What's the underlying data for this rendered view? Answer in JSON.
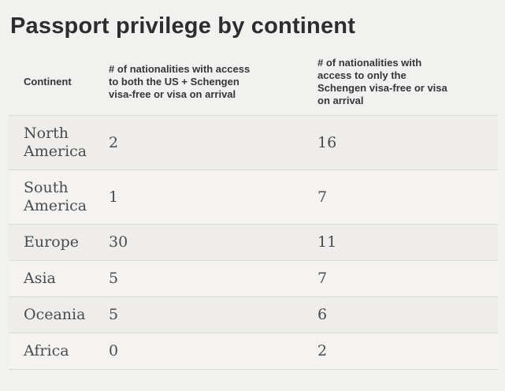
{
  "page": {
    "title": "Passport privilege by continent",
    "background_color": "#f1f1f0",
    "title_color": "#2d2d2d",
    "divider_color": "#d9d9d7",
    "row_stripe_dark": "#eeedeb",
    "row_stripe_light": "#f4f3f1"
  },
  "table": {
    "headers": {
      "continent": "Continent",
      "us_schengen": "# of nationalities with access\nto both the US + Schengen\nvisa-free or visa on arrival",
      "schengen_only": "# of nationalities with\naccess to only the\nSchengen visa-free or visa\non arrival"
    },
    "rows": [
      {
        "continent": "North America",
        "us_schengen": "2",
        "schengen_only": "16"
      },
      {
        "continent": "South America",
        "us_schengen": "1",
        "schengen_only": "7"
      },
      {
        "continent": "Europe",
        "us_schengen": "30",
        "schengen_only": "11"
      },
      {
        "continent": "Asia",
        "us_schengen": "5",
        "schengen_only": "7"
      },
      {
        "continent": "Oceania",
        "us_schengen": "5",
        "schengen_only": "6"
      },
      {
        "continent": "Africa",
        "us_schengen": "0",
        "schengen_only": "2"
      }
    ]
  },
  "chart_data": {
    "type": "table",
    "title": "Passport privilege by continent",
    "columns": [
      "Continent",
      "# of nationalities with access to both the US + Schengen visa-free or visa on arrival",
      "# of nationalities with access to only the Schengen visa-free or visa on arrival"
    ],
    "rows": [
      [
        "North America",
        2,
        16
      ],
      [
        "South America",
        1,
        7
      ],
      [
        "Europe",
        30,
        11
      ],
      [
        "Asia",
        5,
        7
      ],
      [
        "Oceania",
        5,
        6
      ],
      [
        "Africa",
        0,
        2
      ]
    ]
  }
}
